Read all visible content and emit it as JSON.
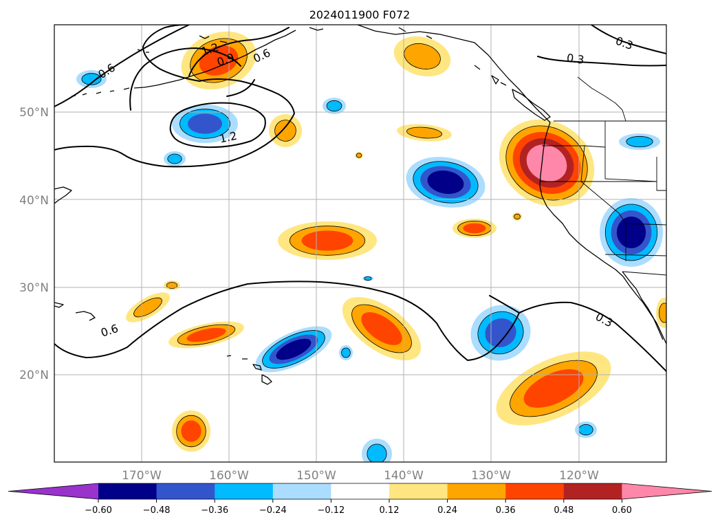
{
  "title": "2024011900 F072",
  "map": {
    "lat_ticks": [
      "50°N",
      "40°N",
      "30°N",
      "20°N"
    ],
    "lon_ticks": [
      "170°W",
      "160°W",
      "150°W",
      "140°W",
      "130°W",
      "120°W"
    ],
    "gridlines": true,
    "tick_label_color": "#808080",
    "contour_color": "#000000",
    "contour_labels": [
      "0.6",
      "1.2",
      "0.9",
      "0.6",
      "1.2",
      "0.6",
      "0.3",
      "0.3",
      "0.3"
    ],
    "coastlines": true,
    "state_borders": true
  },
  "colorbar": {
    "tick_labels": [
      "−0.60",
      "−0.48",
      "−0.36",
      "−0.24",
      "−0.12",
      "0.12",
      "0.24",
      "0.36",
      "0.48",
      "0.60"
    ],
    "colors": [
      "#9933cc",
      "#000088",
      "#3355cc",
      "#00bbff",
      "#aaddff",
      "#ffffff",
      "#ffe680",
      "#ffa500",
      "#ff4400",
      "#b22222",
      "#ff88aa"
    ],
    "extend": "both"
  },
  "palette": {
    "vdarkblue": "#000088",
    "medblue": "#3355cc",
    "cyan": "#00bbff",
    "lightblue": "#aaddff",
    "yellow": "#ffe680",
    "orange": "#ffa500",
    "redorange": "#ff4400",
    "darkred": "#b22222",
    "pink": "#ff88aa"
  }
}
